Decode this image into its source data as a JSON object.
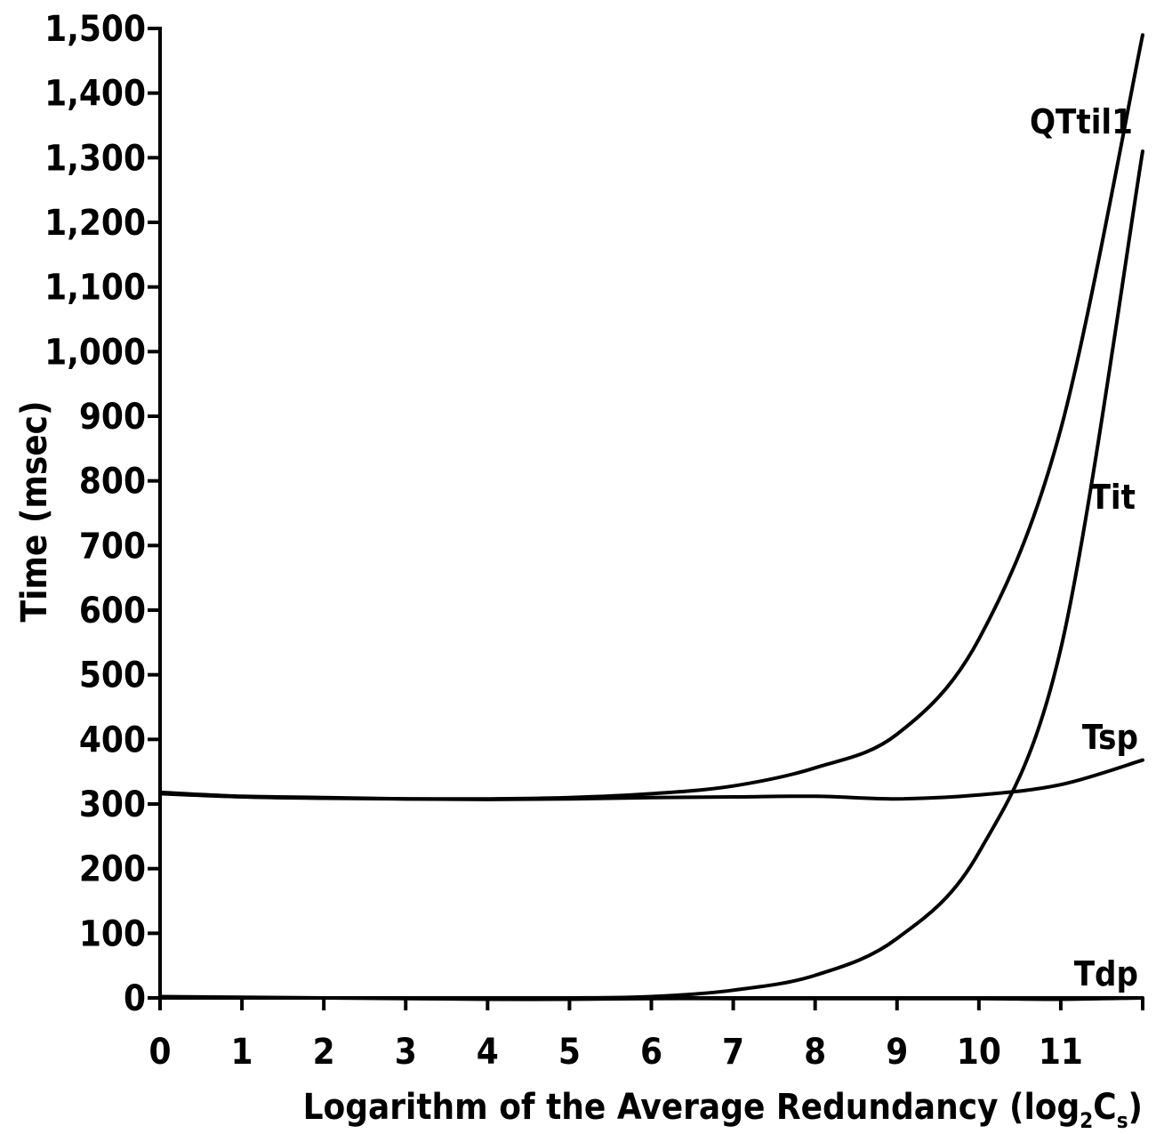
{
  "chart_data": {
    "type": "line",
    "xlabel": "Logarithm of the Average Redundancy (log",
    "xlabel_sub_1": "2",
    "xlabel_mid": "C",
    "xlabel_sub_2": "s",
    "xlabel_end": ")",
    "ylabel": "Time (msec)",
    "xlim": [
      0,
      12
    ],
    "ylim": [
      0,
      1500
    ],
    "x_ticks": [
      0,
      1,
      2,
      3,
      4,
      5,
      6,
      7,
      8,
      9,
      10,
      11,
      12
    ],
    "x_tick_labels": [
      "0",
      "1",
      "2",
      "3",
      "4",
      "5",
      "6",
      "7",
      "8",
      "9",
      "10",
      "11",
      ""
    ],
    "y_ticks": [
      0,
      100,
      200,
      300,
      400,
      500,
      600,
      700,
      800,
      900,
      1000,
      1100,
      1200,
      1300,
      1400,
      1500
    ],
    "y_tick_labels": [
      "0",
      "100",
      "200",
      "300",
      "400",
      "500",
      "600",
      "700",
      "800",
      "900",
      "1,000",
      "1,100",
      "1,200",
      "1,300",
      "1,400",
      "1,500"
    ],
    "series": [
      {
        "name": "QTtil1",
        "x": [
          0,
          1,
          2,
          3,
          4,
          5,
          6,
          7,
          8,
          9,
          10,
          11,
          12
        ],
        "y": [
          318,
          312,
          310,
          308,
          308,
          310,
          316,
          328,
          356,
          408,
          555,
          880,
          1490
        ]
      },
      {
        "name": "Tit",
        "x": [
          0,
          1,
          2,
          3,
          4,
          5,
          6,
          7,
          8,
          9,
          10,
          11,
          12
        ],
        "y": [
          0,
          0,
          0,
          0,
          0,
          0,
          2,
          12,
          35,
          92,
          225,
          540,
          1310
        ]
      },
      {
        "name": "Tsp",
        "x": [
          0,
          1,
          2,
          3,
          4,
          5,
          6,
          7,
          8,
          9,
          10,
          11,
          12
        ],
        "y": [
          316,
          311,
          309,
          308,
          307,
          308,
          310,
          311,
          312,
          308,
          314,
          330,
          368
        ]
      },
      {
        "name": "Tdp",
        "x": [
          0,
          1,
          2,
          3,
          4,
          5,
          6,
          7,
          8,
          9,
          10,
          11,
          12
        ],
        "y": [
          2,
          1,
          0,
          -1,
          -2,
          -2,
          -1,
          -1,
          -1,
          -1,
          -1,
          -2,
          0
        ]
      }
    ],
    "grid": false,
    "legend": "inline labels at line ends"
  }
}
